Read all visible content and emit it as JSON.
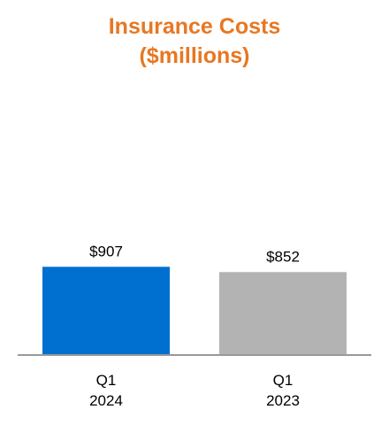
{
  "chart_data": {
    "type": "bar",
    "title_lines": [
      "Insurance Costs",
      "($millions)"
    ],
    "categories": [
      {
        "line1": "Q1",
        "line2": "2024"
      },
      {
        "line1": "Q1",
        "line2": "2023"
      }
    ],
    "values": [
      907,
      852
    ],
    "value_labels": [
      "$907",
      "$852"
    ],
    "colors": [
      "#0070d0",
      "#b3b3b3"
    ],
    "ylim": [
      0,
      1000
    ],
    "grid": false,
    "legend": "none"
  }
}
